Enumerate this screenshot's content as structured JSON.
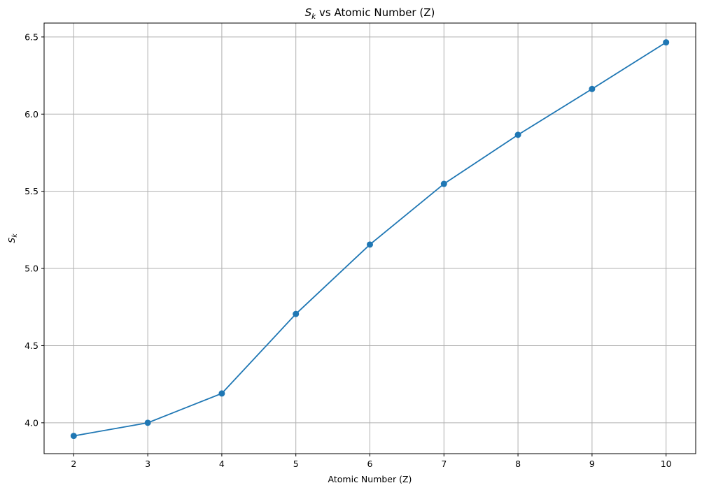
{
  "chart_data": {
    "type": "line",
    "title_main": "S",
    "title_sub": "k",
    "title_rest": " vs Atomic Number (Z)",
    "xlabel": "Atomic Number (Z)",
    "ylabel_main": "S",
    "ylabel_sub": "k",
    "x": [
      2,
      3,
      4,
      5,
      6,
      7,
      8,
      9,
      10
    ],
    "y": [
      3.915,
      4.0,
      4.19,
      4.705,
      5.155,
      5.548,
      5.866,
      6.163,
      6.465
    ],
    "xticks": [
      2,
      3,
      4,
      5,
      6,
      7,
      8,
      9,
      10
    ],
    "yticks": [
      "4.0",
      "4.5",
      "5.0",
      "5.5",
      "6.0",
      "6.5"
    ],
    "xlim": [
      1.6,
      10.4
    ],
    "ylim": [
      3.8,
      6.59
    ],
    "grid": true,
    "marker": "circle",
    "color": "#1f77b4"
  }
}
